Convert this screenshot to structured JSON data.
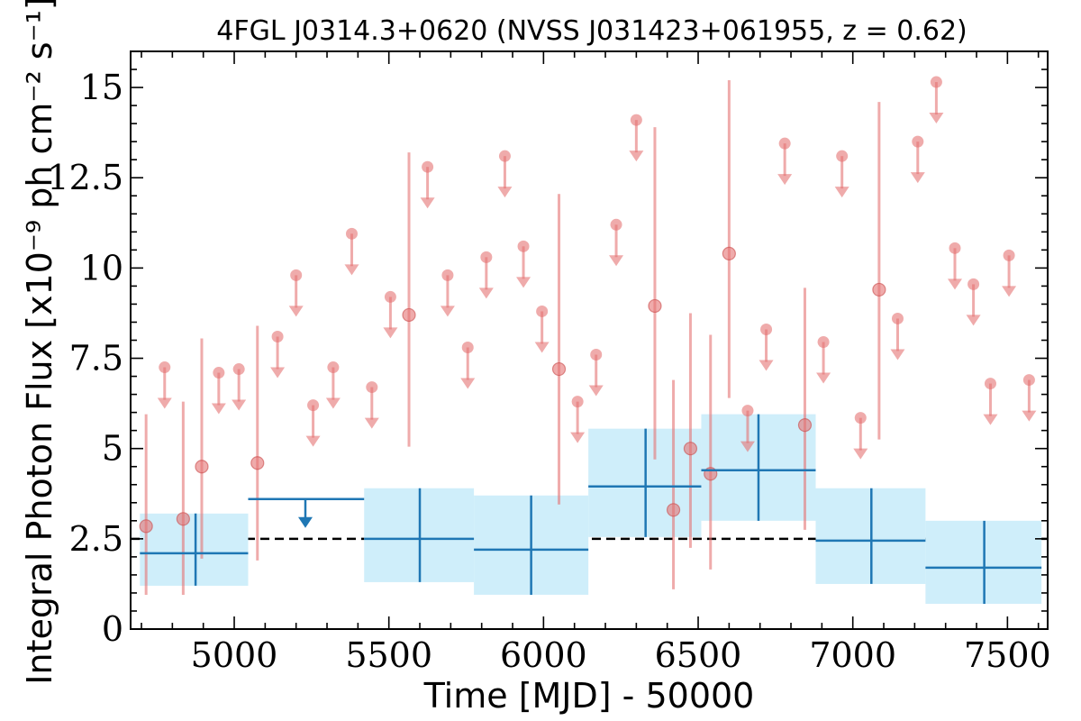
{
  "chart_data": {
    "type": "scatter",
    "title": "4FGL J0314.3+0620 (NVSS J031423+061955, z = 0.62)",
    "xlabel": "Time [MJD] - 50000",
    "ylabel": "Integral Photon Flux [x10⁻⁹ ph cm⁻² s⁻¹]",
    "xlim": [
      4665,
      7630
    ],
    "ylim": [
      0,
      16
    ],
    "xticks": [
      5000,
      5500,
      6000,
      6500,
      7000,
      7500
    ],
    "xtick_labels": [
      "5000",
      "5500",
      "6000",
      "6500",
      "7000",
      "7500"
    ],
    "yticks": [
      0,
      2.5,
      5,
      7.5,
      10,
      12.5,
      15
    ],
    "ytick_labels": [
      "0",
      "2.5",
      "5",
      "7.5",
      "10",
      "12.5",
      "15"
    ],
    "reference_line": {
      "y": 2.5,
      "style": "dashed",
      "color": "#000000"
    },
    "colors": {
      "short_bin": "#e57373",
      "long_bin": "#1f77b4",
      "long_bin_band": "#cfeefa"
    },
    "series": [
      {
        "points": [
          {
            "x": 4715,
            "y": 2.85,
            "ylo": 0.95,
            "yhi": 5.95
          },
          {
            "x": 4835,
            "y": 3.05,
            "ylo": 0.95,
            "yhi": 6.3
          },
          {
            "x": 4895,
            "y": 4.5,
            "ylo": 1.95,
            "yhi": 8.05
          },
          {
            "x": 5075,
            "y": 4.6,
            "ylo": 1.9,
            "yhi": 8.4
          },
          {
            "x": 5565,
            "y": 8.7,
            "ylo": 5.05,
            "yhi": 13.2
          },
          {
            "x": 6050,
            "y": 7.2,
            "ylo": 3.45,
            "yhi": 12.05
          },
          {
            "x": 6360,
            "y": 8.95,
            "ylo": 4.7,
            "yhi": 13.9
          },
          {
            "x": 6420,
            "y": 3.3,
            "ylo": 1.1,
            "yhi": 6.9
          },
          {
            "x": 6475,
            "y": 5.0,
            "ylo": 2.25,
            "yhi": 8.75
          },
          {
            "x": 6540,
            "y": 4.3,
            "ylo": 1.65,
            "yhi": 8.15
          },
          {
            "x": 6600,
            "y": 10.4,
            "ylo": 6.4,
            "yhi": 15.2
          },
          {
            "x": 6845,
            "y": 5.65,
            "ylo": 2.75,
            "yhi": 9.45
          },
          {
            "x": 7085,
            "y": 9.4,
            "ylo": 5.25,
            "yhi": 14.6
          }
        ],
        "upper_limits": [
          {
            "x": 4775,
            "y": 7.25
          },
          {
            "x": 4950,
            "y": 7.1
          },
          {
            "x": 5015,
            "y": 7.2
          },
          {
            "x": 5140,
            "y": 8.1
          },
          {
            "x": 5200,
            "y": 9.8
          },
          {
            "x": 5255,
            "y": 6.2
          },
          {
            "x": 5320,
            "y": 7.25
          },
          {
            "x": 5380,
            "y": 10.95
          },
          {
            "x": 5445,
            "y": 6.7
          },
          {
            "x": 5505,
            "y": 9.2
          },
          {
            "x": 5625,
            "y": 12.8
          },
          {
            "x": 5690,
            "y": 9.8
          },
          {
            "x": 5755,
            "y": 7.8
          },
          {
            "x": 5815,
            "y": 10.3
          },
          {
            "x": 5875,
            "y": 13.1
          },
          {
            "x": 5935,
            "y": 10.6
          },
          {
            "x": 5995,
            "y": 8.8
          },
          {
            "x": 6110,
            "y": 6.3
          },
          {
            "x": 6170,
            "y": 7.6
          },
          {
            "x": 6235,
            "y": 11.2
          },
          {
            "x": 6300,
            "y": 14.1
          },
          {
            "x": 6660,
            "y": 6.05
          },
          {
            "x": 6720,
            "y": 8.3
          },
          {
            "x": 6780,
            "y": 13.45
          },
          {
            "x": 6905,
            "y": 7.95
          },
          {
            "x": 6965,
            "y": 13.1
          },
          {
            "x": 7025,
            "y": 5.85
          },
          {
            "x": 7145,
            "y": 8.6
          },
          {
            "x": 7210,
            "y": 13.5
          },
          {
            "x": 7270,
            "y": 15.15
          },
          {
            "x": 7330,
            "y": 10.55
          },
          {
            "x": 7390,
            "y": 9.55
          },
          {
            "x": 7445,
            "y": 6.8
          },
          {
            "x": 7505,
            "y": 10.35
          },
          {
            "x": 7570,
            "y": 6.9
          }
        ]
      },
      {
        "bins": [
          {
            "x0": 4695,
            "x1": 5045,
            "x": 4875,
            "y": 2.1,
            "ylo": 1.2,
            "yhi": 3.2,
            "band": [
              1.2,
              3.2
            ]
          },
          {
            "x0": 5420,
            "x1": 5775,
            "x": 5600,
            "y": 2.5,
            "ylo": 1.3,
            "yhi": 3.9,
            "band": [
              1.3,
              3.9
            ]
          },
          {
            "x0": 5775,
            "x1": 6145,
            "x": 5960,
            "y": 2.2,
            "ylo": 0.95,
            "yhi": 3.7,
            "band": [
              0.95,
              3.7
            ]
          },
          {
            "x0": 6145,
            "x1": 6510,
            "x": 6330,
            "y": 3.95,
            "ylo": 2.55,
            "yhi": 5.55,
            "band": [
              2.55,
              5.55
            ]
          },
          {
            "x0": 6510,
            "x1": 6880,
            "x": 6695,
            "y": 4.4,
            "ylo": 3.0,
            "yhi": 5.95,
            "band": [
              3.0,
              5.95
            ]
          },
          {
            "x0": 6880,
            "x1": 7235,
            "x": 7060,
            "y": 2.45,
            "ylo": 1.25,
            "yhi": 3.9,
            "band": [
              1.25,
              3.9
            ]
          },
          {
            "x0": 7235,
            "x1": 7610,
            "x": 7425,
            "y": 1.7,
            "ylo": 0.7,
            "yhi": 3.0,
            "band": [
              0.7,
              3.0
            ]
          }
        ],
        "upper_limits": [
          {
            "x0": 5045,
            "x1": 5420,
            "x": 5230,
            "y": 3.6
          }
        ]
      }
    ]
  }
}
